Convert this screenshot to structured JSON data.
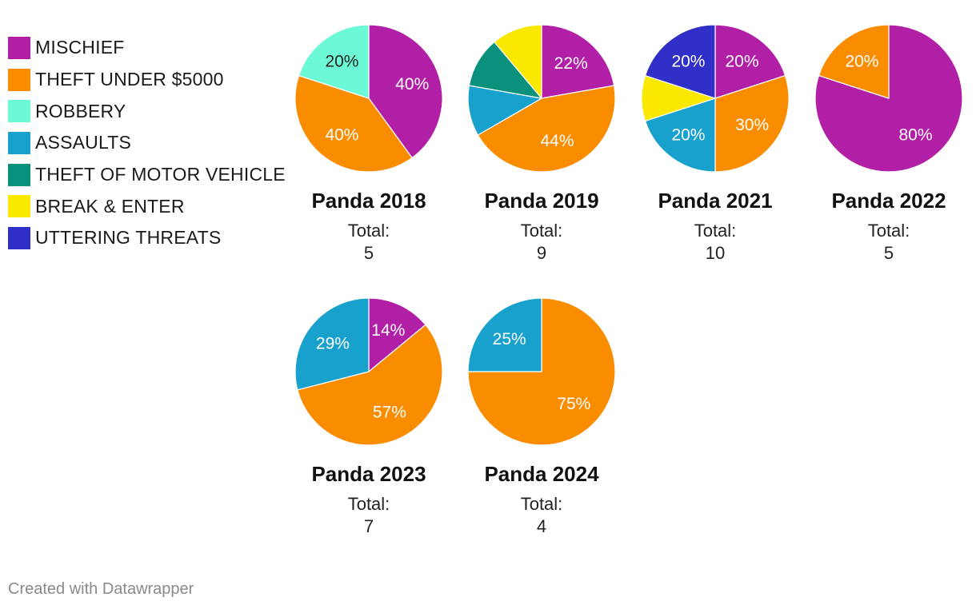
{
  "chart_data": {
    "type": "pie",
    "categories": [
      {
        "name": "MISCHIEF",
        "color": "#b01fa6"
      },
      {
        "name": "THEFT UNDER $5000",
        "color": "#fa8c00"
      },
      {
        "name": "ROBBERY",
        "color": "#6cfad6"
      },
      {
        "name": "ASSAULTS",
        "color": "#18a1cd"
      },
      {
        "name": "THEFT OF MOTOR VEHICLE",
        "color": "#09917c"
      },
      {
        "name": "BREAK & ENTER",
        "color": "#fae800"
      },
      {
        "name": "UTTERING THREATS",
        "color": "#3030c8"
      }
    ],
    "total_label": "Total:",
    "pies": [
      {
        "title": "Panda 2018",
        "total": "5",
        "slices": [
          {
            "category": "MISCHIEF",
            "value": 40,
            "label": "40%"
          },
          {
            "category": "THEFT UNDER $5000",
            "value": 40,
            "label": "40%"
          },
          {
            "category": "ROBBERY",
            "value": 20,
            "label": "20%"
          }
        ]
      },
      {
        "title": "Panda 2019",
        "total": "9",
        "slices": [
          {
            "category": "MISCHIEF",
            "value": 22,
            "label": "22%"
          },
          {
            "category": "THEFT UNDER $5000",
            "value": 44,
            "label": "44%"
          },
          {
            "category": "ASSAULTS",
            "value": 11,
            "label": ""
          },
          {
            "category": "THEFT OF MOTOR VEHICLE",
            "value": 11,
            "label": ""
          },
          {
            "category": "BREAK & ENTER",
            "value": 11,
            "label": ""
          }
        ]
      },
      {
        "title": "Panda 2021",
        "total": "10",
        "slices": [
          {
            "category": "MISCHIEF",
            "value": 20,
            "label": "20%"
          },
          {
            "category": "THEFT UNDER $5000",
            "value": 30,
            "label": "30%"
          },
          {
            "category": "ASSAULTS",
            "value": 20,
            "label": "20%"
          },
          {
            "category": "BREAK & ENTER",
            "value": 10,
            "label": ""
          },
          {
            "category": "UTTERING THREATS",
            "value": 20,
            "label": "20%"
          }
        ]
      },
      {
        "title": "Panda 2022",
        "total": "5",
        "slices": [
          {
            "category": "MISCHIEF",
            "value": 80,
            "label": "80%"
          },
          {
            "category": "THEFT UNDER $5000",
            "value": 20,
            "label": "20%"
          }
        ]
      },
      {
        "title": "Panda 2023",
        "total": "7",
        "slices": [
          {
            "category": "MISCHIEF",
            "value": 14,
            "label": "14%"
          },
          {
            "category": "THEFT UNDER $5000",
            "value": 57,
            "label": "57%"
          },
          {
            "category": "ASSAULTS",
            "value": 29,
            "label": "29%"
          }
        ]
      },
      {
        "title": "Panda 2024",
        "total": "4",
        "slices": [
          {
            "category": "THEFT UNDER $5000",
            "value": 75,
            "label": "75%"
          },
          {
            "category": "ASSAULTS",
            "value": 25,
            "label": "25%"
          }
        ]
      }
    ]
  },
  "footer": {
    "credit": "Created with Datawrapper"
  }
}
